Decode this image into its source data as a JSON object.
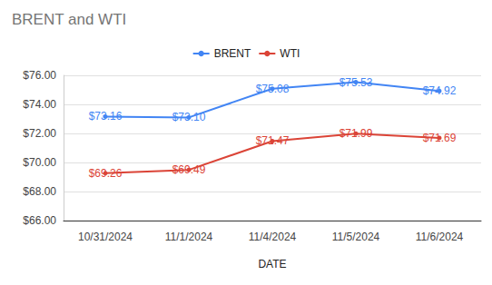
{
  "chart_data": {
    "type": "line",
    "title": "BRENT and WTI",
    "x_label": "DATE",
    "categories": [
      "10/31/2024",
      "11/1/2024",
      "11/4/2024",
      "11/5/2024",
      "11/6/2024"
    ],
    "series": [
      {
        "name": "BRENT",
        "color": "#4285f4",
        "values": [
          73.16,
          73.1,
          75.08,
          75.53,
          74.92
        ],
        "value_labels": [
          "$73.16",
          "$73.10",
          "$75.08",
          "$75.53",
          "$74.92"
        ]
      },
      {
        "name": "WTI",
        "color": "#db4437",
        "values": [
          69.26,
          69.49,
          71.47,
          71.99,
          71.69
        ],
        "value_labels": [
          "$69.26",
          "$69.49",
          "$71.47",
          "$71.99",
          "$71.69"
        ]
      }
    ],
    "ylim": [
      66,
      76
    ],
    "yticks": [
      {
        "value": 66,
        "label": "$66.00"
      },
      {
        "value": 68,
        "label": "$68.00"
      },
      {
        "value": 70,
        "label": "$70.00"
      },
      {
        "value": 72,
        "label": "$72.00"
      },
      {
        "value": 74,
        "label": "$74.00"
      },
      {
        "value": 76,
        "label": "$76.00"
      }
    ],
    "grid": true,
    "legend": "top",
    "data_labels": true,
    "marker": "circle",
    "line_style": "solid"
  }
}
